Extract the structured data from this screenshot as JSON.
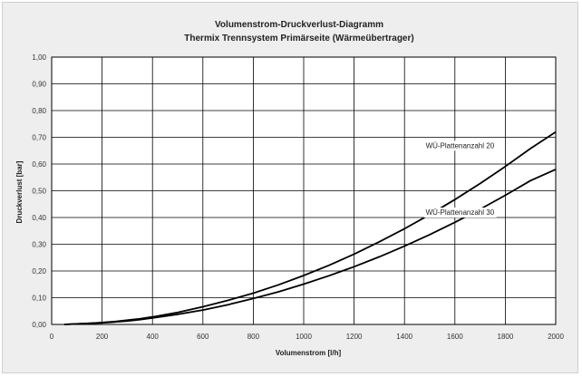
{
  "colors": {
    "background": "#eeeeee",
    "plot_area": "#ffffff",
    "grid": "#000000",
    "series": "#000000"
  },
  "chart_data": {
    "type": "line",
    "title": "Volumenstrom-Druckverlust-Diagramm",
    "subtitle": "Thermix Trennsystem Primärseite (Wärmeübertrager)",
    "xlabel": "Volumenstrom [l/h]",
    "ylabel": "Druckverlust [bar]",
    "xlim": [
      0,
      2000
    ],
    "ylim": [
      0,
      1
    ],
    "grid": true,
    "x_ticks": [
      0,
      200,
      400,
      600,
      800,
      1000,
      1200,
      1400,
      1600,
      1800,
      2000
    ],
    "x_tick_labels": [
      "0",
      "200",
      "400",
      "600",
      "800",
      "1000",
      "1200",
      "1400",
      "1600",
      "1800",
      "2000"
    ],
    "y_ticks": [
      0,
      0.1,
      0.2,
      0.3,
      0.4,
      0.5,
      0.6,
      0.7,
      0.8,
      0.9,
      1.0
    ],
    "y_tick_labels": [
      "0,00",
      "0,10",
      "0,20",
      "0,30",
      "0,40",
      "0,50",
      "0,60",
      "0,70",
      "0,80",
      "0,90",
      "1,00"
    ],
    "series": [
      {
        "name": "WÜ-Plattenanzahl 20",
        "x": [
          50,
          100,
          150,
          200,
          250,
          300,
          350,
          400,
          500,
          600,
          700,
          800,
          900,
          1000,
          1100,
          1200,
          1300,
          1400,
          1500,
          1600,
          1700,
          1800,
          1900,
          2000
        ],
        "y": [
          0.0,
          0.002,
          0.004,
          0.007,
          0.011,
          0.016,
          0.021,
          0.028,
          0.045,
          0.066,
          0.09,
          0.117,
          0.148,
          0.183,
          0.221,
          0.263,
          0.309,
          0.358,
          0.411,
          0.467,
          0.527,
          0.591,
          0.658,
          0.72
        ]
      },
      {
        "name": "WÜ-Plattenanzahl 30",
        "x": [
          50,
          100,
          150,
          200,
          250,
          300,
          350,
          400,
          500,
          600,
          700,
          800,
          900,
          1000,
          1100,
          1200,
          1300,
          1400,
          1500,
          1600,
          1700,
          1800,
          1900,
          2000
        ],
        "y": [
          0.0,
          0.002,
          0.004,
          0.006,
          0.009,
          0.013,
          0.018,
          0.024,
          0.038,
          0.054,
          0.074,
          0.097,
          0.122,
          0.151,
          0.182,
          0.216,
          0.253,
          0.293,
          0.336,
          0.382,
          0.431,
          0.483,
          0.538,
          0.58
        ]
      }
    ],
    "series_labels": [
      {
        "text": "WÜ-Plattenanzahl 20",
        "x": 1620,
        "y": 0.66
      },
      {
        "text": "WÜ-Plattenanzahl 30",
        "x": 1620,
        "y": 0.41
      }
    ]
  }
}
